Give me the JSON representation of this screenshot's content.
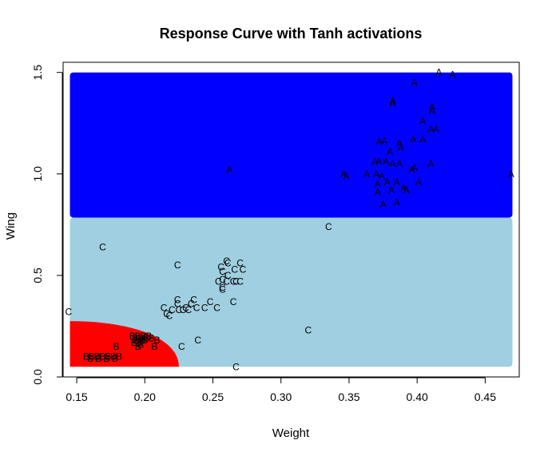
{
  "chart_data": {
    "type": "scatter",
    "title": "Response Curve with Tanh activations",
    "xlabel": "Weight",
    "ylabel": "Wing",
    "xlim": [
      0.14,
      0.475
    ],
    "ylim": [
      0.0,
      1.55
    ],
    "xticks": [
      "0.15",
      "0.20",
      "0.25",
      "0.30",
      "0.35",
      "0.40",
      "0.45"
    ],
    "yticks": [
      "0.0",
      "0.5",
      "1.0",
      "1.5"
    ],
    "grid": false,
    "legend": "none",
    "colors": {
      "region_A": "#0000ff",
      "region_C": "#9fcfe0",
      "region_B": "#ff0000",
      "markers": "#000000",
      "frame": "#000000"
    },
    "regions": [
      {
        "class": "A",
        "x": [
          0.145,
          0.47
        ],
        "y": [
          0.785,
          1.5
        ]
      },
      {
        "class": "C",
        "x": [
          0.145,
          0.47
        ],
        "y": [
          0.05,
          0.785
        ]
      },
      {
        "class": "B",
        "x_max": 0.225,
        "y_max": 0.275
      }
    ],
    "series": [
      {
        "name": "A",
        "points": [
          [
            0.416,
            1.5
          ],
          [
            0.426,
            1.49
          ],
          [
            0.398,
            1.45
          ],
          [
            0.382,
            1.36
          ],
          [
            0.382,
            1.35
          ],
          [
            0.411,
            1.33
          ],
          [
            0.411,
            1.31
          ],
          [
            0.404,
            1.26
          ],
          [
            0.41,
            1.22
          ],
          [
            0.414,
            1.22
          ],
          [
            0.397,
            1.17
          ],
          [
            0.404,
            1.17
          ],
          [
            0.372,
            1.16
          ],
          [
            0.376,
            1.16
          ],
          [
            0.387,
            1.15
          ],
          [
            0.38,
            1.11
          ],
          [
            0.388,
            1.13
          ],
          [
            0.41,
            1.05
          ],
          [
            0.369,
            1.06
          ],
          [
            0.372,
            1.06
          ],
          [
            0.377,
            1.06
          ],
          [
            0.382,
            1.05
          ],
          [
            0.387,
            1.05
          ],
          [
            0.398,
            1.03
          ],
          [
            0.396,
            1.02
          ],
          [
            0.363,
            1.0
          ],
          [
            0.37,
            1.0
          ],
          [
            0.374,
            0.99
          ],
          [
            0.378,
            0.96
          ],
          [
            0.371,
            0.95
          ],
          [
            0.385,
            0.96
          ],
          [
            0.39,
            0.93
          ],
          [
            0.401,
            0.96
          ],
          [
            0.346,
            1.0
          ],
          [
            0.348,
            0.99
          ],
          [
            0.371,
            0.91
          ],
          [
            0.381,
            0.92
          ],
          [
            0.392,
            0.92
          ],
          [
            0.375,
            0.85
          ],
          [
            0.385,
            0.86
          ],
          [
            0.262,
            1.02
          ],
          [
            0.469,
            1.0
          ]
        ]
      },
      {
        "name": "C",
        "points": [
          [
            0.335,
            0.74
          ],
          [
            0.169,
            0.64
          ],
          [
            0.224,
            0.55
          ],
          [
            0.26,
            0.57
          ],
          [
            0.261,
            0.56
          ],
          [
            0.27,
            0.56
          ],
          [
            0.256,
            0.54
          ],
          [
            0.266,
            0.53
          ],
          [
            0.272,
            0.53
          ],
          [
            0.257,
            0.52
          ],
          [
            0.261,
            0.5
          ],
          [
            0.257,
            0.48
          ],
          [
            0.254,
            0.47
          ],
          [
            0.26,
            0.47
          ],
          [
            0.265,
            0.47
          ],
          [
            0.267,
            0.47
          ],
          [
            0.27,
            0.47
          ],
          [
            0.257,
            0.44
          ],
          [
            0.257,
            0.43
          ],
          [
            0.265,
            0.37
          ],
          [
            0.248,
            0.37
          ],
          [
            0.236,
            0.38
          ],
          [
            0.234,
            0.36
          ],
          [
            0.224,
            0.38
          ],
          [
            0.224,
            0.36
          ],
          [
            0.23,
            0.34
          ],
          [
            0.238,
            0.34
          ],
          [
            0.244,
            0.34
          ],
          [
            0.214,
            0.34
          ],
          [
            0.22,
            0.33
          ],
          [
            0.225,
            0.33
          ],
          [
            0.228,
            0.33
          ],
          [
            0.232,
            0.33
          ],
          [
            0.253,
            0.34
          ],
          [
            0.216,
            0.31
          ],
          [
            0.218,
            0.3
          ],
          [
            0.144,
            0.32
          ],
          [
            0.32,
            0.23
          ],
          [
            0.239,
            0.18
          ],
          [
            0.227,
            0.15
          ],
          [
            0.267,
            0.05
          ]
        ]
      },
      {
        "name": "B",
        "points": [
          [
            0.191,
            0.2
          ],
          [
            0.195,
            0.2
          ],
          [
            0.199,
            0.2
          ],
          [
            0.203,
            0.2
          ],
          [
            0.193,
            0.19
          ],
          [
            0.197,
            0.19
          ],
          [
            0.201,
            0.19
          ],
          [
            0.205,
            0.19
          ],
          [
            0.193,
            0.18
          ],
          [
            0.198,
            0.18
          ],
          [
            0.2,
            0.18
          ],
          [
            0.196,
            0.17
          ],
          [
            0.192,
            0.17
          ],
          [
            0.197,
            0.16
          ],
          [
            0.209,
            0.18
          ],
          [
            0.207,
            0.15
          ],
          [
            0.195,
            0.15
          ],
          [
            0.179,
            0.15
          ],
          [
            0.157,
            0.1
          ],
          [
            0.161,
            0.1
          ],
          [
            0.165,
            0.1
          ],
          [
            0.169,
            0.1
          ],
          [
            0.173,
            0.1
          ],
          [
            0.177,
            0.1
          ],
          [
            0.181,
            0.1
          ],
          [
            0.16,
            0.09
          ],
          [
            0.166,
            0.09
          ],
          [
            0.172,
            0.09
          ],
          [
            0.178,
            0.09
          ]
        ]
      }
    ]
  }
}
